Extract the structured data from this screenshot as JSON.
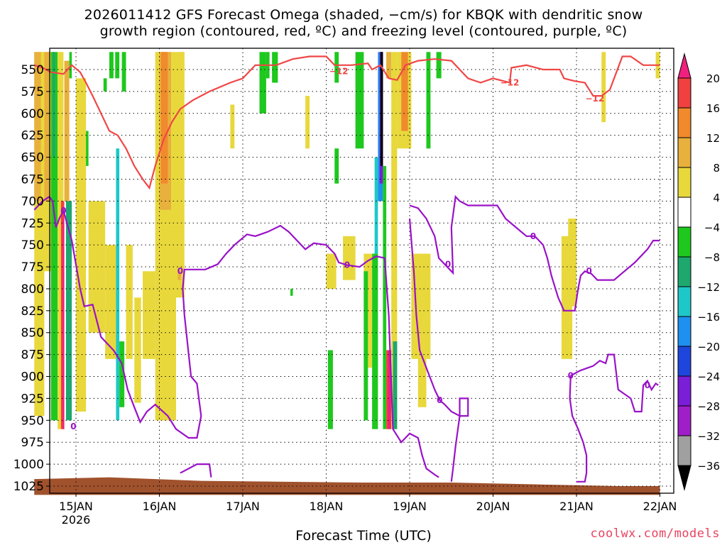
{
  "title_line1": "2026011412 GFS Forecast Omega (shaded, −cm/s) for KBQK with dendritic snow",
  "title_line2": "growth region (contoured, red, ºC) and freezing level (contoured, purple, ºC)",
  "chart_data": {
    "type": "time-height contour plot",
    "xlabel": "Forecast Time (UTC)",
    "x_ticks": [
      "15JAN",
      "16JAN",
      "17JAN",
      "18JAN",
      "19JAN",
      "20JAN",
      "21JAN",
      "22JAN"
    ],
    "x_sublabel": "2026",
    "x_range_days": [
      14.5,
      22.0
    ],
    "y_ticks": [
      550,
      575,
      600,
      625,
      650,
      675,
      700,
      725,
      750,
      775,
      800,
      825,
      850,
      875,
      900,
      925,
      950,
      975,
      1000,
      1025
    ],
    "y_range_hpa": [
      530,
      1035
    ],
    "y_inverted": true,
    "grid": "dotted",
    "colorbar": {
      "labels": [
        "20",
        "16",
        "12",
        "8",
        "4",
        "−4",
        "−8",
        "−12",
        "−16",
        "−20",
        "−24",
        "−28",
        "−32",
        "−36"
      ],
      "colors": [
        "#f0207e",
        "#f04040",
        "#f08a2c",
        "#e8b03c",
        "#e8d83c",
        "#ffffff",
        "#1ec81e",
        "#1ea86e",
        "#1ec8c8",
        "#1e90f0",
        "#1e46dc",
        "#7a1ed8",
        "#a01ec8",
        "#a0a0a0",
        "#000000"
      ]
    },
    "contours": [
      {
        "name": "dendritic snow growth region (-12)",
        "color": "#f04646",
        "labels": [
          "−12",
          "−12",
          "−12"
        ],
        "label_points": [
          [
            18.15,
            552
          ],
          [
            20.2,
            565
          ],
          [
            21.22,
            583
          ]
        ],
        "points": [
          [
            14.5,
            545
          ],
          [
            14.6,
            548
          ],
          [
            14.7,
            553
          ],
          [
            14.85,
            555
          ],
          [
            14.95,
            545
          ],
          [
            15.05,
            553
          ],
          [
            15.12,
            565
          ],
          [
            15.2,
            580
          ],
          [
            15.3,
            600
          ],
          [
            15.4,
            620
          ],
          [
            15.5,
            625
          ],
          [
            15.6,
            640
          ],
          [
            15.7,
            660
          ],
          [
            15.8,
            675
          ],
          [
            15.88,
            685
          ],
          [
            15.95,
            660
          ],
          [
            16.05,
            630
          ],
          [
            16.15,
            610
          ],
          [
            16.25,
            595
          ],
          [
            16.4,
            585
          ],
          [
            16.6,
            575
          ],
          [
            16.85,
            565
          ],
          [
            17.0,
            560
          ],
          [
            17.15,
            545
          ],
          [
            17.4,
            545
          ],
          [
            17.6,
            538
          ],
          [
            17.8,
            535
          ],
          [
            18.0,
            535
          ],
          [
            18.1,
            545
          ],
          [
            18.3,
            545
          ],
          [
            18.5,
            543
          ],
          [
            18.55,
            550
          ],
          [
            18.65,
            545
          ],
          [
            18.75,
            560
          ],
          [
            18.85,
            562
          ],
          [
            18.95,
            545
          ],
          [
            19.1,
            540
          ],
          [
            19.3,
            538
          ],
          [
            19.5,
            540
          ],
          [
            19.7,
            560
          ],
          [
            19.85,
            565
          ],
          [
            20.0,
            560
          ],
          [
            20.2,
            565
          ],
          [
            20.22,
            548
          ],
          [
            20.4,
            545
          ],
          [
            20.6,
            550
          ],
          [
            20.8,
            550
          ],
          [
            20.85,
            560
          ],
          [
            20.97,
            563
          ],
          [
            21.1,
            565
          ],
          [
            21.2,
            580
          ],
          [
            21.3,
            580
          ],
          [
            21.4,
            573
          ],
          [
            21.55,
            535
          ],
          [
            21.65,
            535
          ],
          [
            21.8,
            545
          ],
          [
            21.97,
            545
          ],
          [
            22.0,
            545
          ]
        ]
      },
      {
        "name": "freezing level (0)",
        "color": "#9a12c8",
        "labels": [
          "0",
          "0",
          "0",
          "0",
          "0",
          "0",
          "0",
          "0",
          "0",
          "0"
        ],
        "label_points": [
          [
            14.85,
            711
          ],
          [
            14.97,
            957
          ],
          [
            16.25,
            780
          ],
          [
            18.25,
            773
          ],
          [
            19.36,
            927
          ],
          [
            19.46,
            772
          ],
          [
            20.48,
            740
          ],
          [
            21.15,
            780
          ],
          [
            20.93,
            899
          ],
          [
            21.85,
            910
          ]
        ],
        "points": [
          [
            14.5,
            710
          ],
          [
            14.6,
            700
          ],
          [
            14.68,
            695
          ],
          [
            14.72,
            700
          ],
          [
            14.76,
            730
          ],
          [
            14.8,
            720
          ],
          [
            14.85,
            711
          ],
          [
            14.95,
            745
          ],
          [
            15.05,
            800
          ],
          [
            15.1,
            820
          ],
          [
            15.2,
            818
          ],
          [
            15.3,
            855
          ],
          [
            15.45,
            870
          ],
          [
            15.55,
            885
          ],
          [
            15.62,
            915
          ],
          [
            15.7,
            935
          ],
          [
            15.77,
            952
          ],
          [
            15.85,
            940
          ],
          [
            15.95,
            932
          ],
          [
            16.1,
            945
          ],
          [
            16.2,
            960
          ],
          [
            16.35,
            970
          ],
          [
            16.45,
            970
          ],
          [
            16.5,
            945
          ],
          [
            16.45,
            908
          ],
          [
            16.38,
            900
          ],
          [
            16.3,
            830
          ],
          [
            16.28,
            800
          ],
          [
            16.3,
            778
          ],
          [
            16.45,
            778
          ],
          [
            16.55,
            778
          ],
          [
            16.7,
            772
          ],
          [
            16.8,
            760
          ],
          [
            16.9,
            750
          ],
          [
            17.05,
            738
          ],
          [
            17.15,
            740
          ],
          [
            17.3,
            735
          ],
          [
            17.45,
            728
          ],
          [
            17.55,
            735
          ],
          [
            17.65,
            745
          ],
          [
            17.75,
            755
          ],
          [
            17.85,
            748
          ],
          [
            18.0,
            750
          ],
          [
            18.1,
            760
          ],
          [
            18.15,
            770
          ],
          [
            18.25,
            773
          ],
          [
            18.4,
            775
          ],
          [
            18.5,
            768
          ],
          [
            18.6,
            763
          ],
          [
            18.7,
            765
          ],
          [
            18.75,
            830
          ],
          [
            18.8,
            960
          ],
          [
            18.9,
            975
          ],
          [
            19.0,
            965
          ],
          [
            19.1,
            970
          ],
          [
            19.15,
            990
          ],
          [
            19.2,
            1005
          ],
          [
            19.3,
            1012
          ],
          [
            19.35,
            1015
          ]
        ]
      }
    ],
    "shading_regions": [
      {
        "name": "terrain",
        "value": "surface",
        "color": "#a0522d"
      },
      {
        "name": "rising motion",
        "value_range": [
          4,
          20
        ],
        "colors": [
          "#e8d83c",
          "#e8b03c",
          "#f08a2c",
          "#f04040"
        ]
      },
      {
        "name": "sinking motion",
        "value_range": [
          -36,
          -4
        ],
        "colors": [
          "#1ec81e",
          "#1ea86e",
          "#1ec8c8",
          "#1e90f0",
          "#7a1ed8",
          "#000000"
        ]
      }
    ]
  },
  "credit": "coolwx.com/models"
}
